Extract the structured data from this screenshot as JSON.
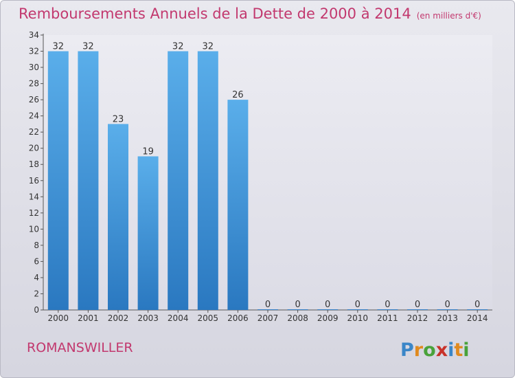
{
  "chart_data": {
    "type": "bar",
    "title": "Remboursements Annuels de la Dette de 2000 à 2014",
    "subtitle": "(en milliers d'€)",
    "categories": [
      "2000",
      "2001",
      "2002",
      "2003",
      "2004",
      "2005",
      "2006",
      "2007",
      "2008",
      "2009",
      "2010",
      "2011",
      "2012",
      "2013",
      "2014"
    ],
    "values": [
      32,
      32,
      23,
      19,
      32,
      32,
      26,
      0,
      0,
      0,
      0,
      0,
      0,
      0,
      0
    ],
    "data_labels": [
      "32",
      "32",
      "23",
      "19",
      "32",
      "32",
      "26",
      "0",
      "0",
      "0",
      "0",
      "0",
      "0",
      "0",
      "0"
    ],
    "y_ticks": [
      "0",
      "2",
      "4",
      "6",
      "8",
      "10",
      "12",
      "14",
      "16",
      "18",
      "20",
      "22",
      "24",
      "26",
      "28",
      "30",
      "32",
      "34"
    ],
    "ylim": [
      0,
      34
    ],
    "grid": false,
    "bar_color": "#4a9fe0"
  },
  "footer": {
    "commune": "ROMANSWILLER",
    "logo_text": "Proxiti"
  },
  "colors": {
    "title": "#c2386e",
    "logo_p": "#3a86c8",
    "logo_r": "#e08a1e",
    "logo_o": "#49a23a",
    "logo_x": "#c8322a",
    "logo_i1": "#3a86c8",
    "logo_t": "#e08a1e",
    "logo_i2": "#49a23a"
  }
}
